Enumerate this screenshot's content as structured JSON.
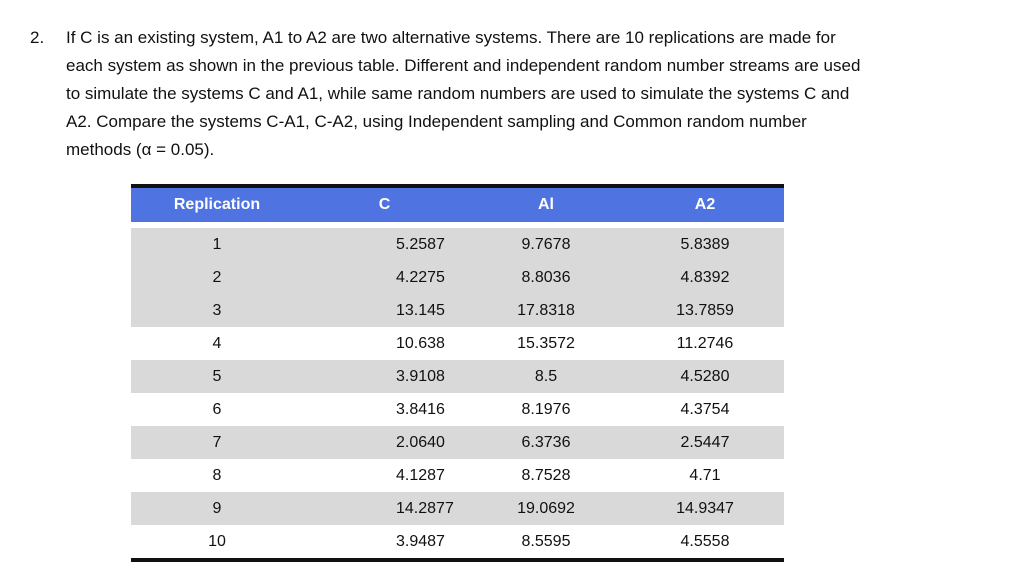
{
  "question": {
    "number": "2.",
    "lines": [
      "If C is an existing system, A1 to A2 are two alternative systems. There are 10 replications are made for",
      "each system as shown in the previous table. Different and independent random number streams are used",
      "to simulate the systems C and A1, while same random numbers are used to simulate the systems C and",
      "A2. Compare the systems C-A1, C-A2, using Independent sampling and Common random number",
      "methods (α = 0.05)."
    ]
  },
  "table": {
    "headers": [
      "Replication",
      "C",
      "Al",
      "A2"
    ],
    "rows": [
      [
        "1",
        "5.2587",
        "9.7678",
        "5.8389"
      ],
      [
        "2",
        "4.2275",
        "8.8036",
        "4.8392"
      ],
      [
        "3",
        "13.145",
        "17.8318",
        "13.7859"
      ],
      [
        "4",
        "10.638",
        "15.3572",
        "11.2746"
      ],
      [
        "5",
        "3.9108",
        "8.5",
        "4.5280"
      ],
      [
        "6",
        "3.8416",
        "8.1976",
        "4.3754"
      ],
      [
        "7",
        "2.0640",
        "6.3736",
        "2.5447"
      ],
      [
        "8",
        "4.1287",
        "8.7528",
        "4.71"
      ],
      [
        "9",
        "14.2877",
        "19.0692",
        "14.9347"
      ],
      [
        "10",
        "3.9487",
        "8.5595",
        "4.5558"
      ]
    ]
  },
  "colors": {
    "header_bg": "#4f73e0",
    "header_text": "#ffffff",
    "row_shade": "#d9d9d9"
  }
}
